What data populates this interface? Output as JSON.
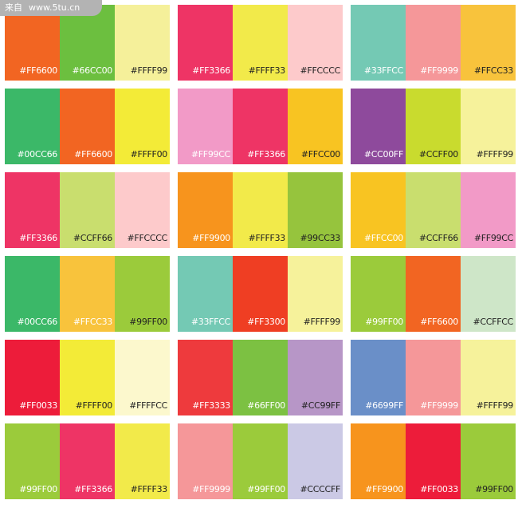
{
  "watermark": {
    "prefix": "来自",
    "site": "www.5tu.cn"
  },
  "palettes": [
    {
      "swatches": [
        {
          "label": "#FF6600",
          "color": "#F26522",
          "text": "light"
        },
        {
          "label": "#66CC00",
          "color": "#6CBF3F",
          "text": "light"
        },
        {
          "label": "#FFFF99",
          "color": "#F5F09A",
          "text": "dark"
        }
      ]
    },
    {
      "swatches": [
        {
          "label": "#FF3366",
          "color": "#EE3465",
          "text": "light"
        },
        {
          "label": "#FFFF33",
          "color": "#F2EA4A",
          "text": "dark"
        },
        {
          "label": "#FFCCCC",
          "color": "#FDCACB",
          "text": "dark"
        }
      ]
    },
    {
      "swatches": [
        {
          "label": "#33FFCC",
          "color": "#74C9B4",
          "text": "light"
        },
        {
          "label": "#FF9999",
          "color": "#F59799",
          "text": "light"
        },
        {
          "label": "#FFCC33",
          "color": "#F8C33C",
          "text": "dark"
        }
      ]
    },
    {
      "swatches": [
        {
          "label": "#00CC66",
          "color": "#3BB868",
          "text": "light"
        },
        {
          "label": "#FF6600",
          "color": "#F26522",
          "text": "light"
        },
        {
          "label": "#FFFF00",
          "color": "#F3EB37",
          "text": "dark"
        }
      ]
    },
    {
      "swatches": [
        {
          "label": "#FF99CC",
          "color": "#F29AC7",
          "text": "light"
        },
        {
          "label": "#FF3366",
          "color": "#EE3465",
          "text": "light"
        },
        {
          "label": "#FFCC00",
          "color": "#F8C422",
          "text": "dark"
        }
      ]
    },
    {
      "swatches": [
        {
          "label": "#CC00FF",
          "color": "#8E4A9C",
          "text": "light"
        },
        {
          "label": "#CCFF00",
          "color": "#C9DB2E",
          "text": "dark"
        },
        {
          "label": "#FFFF99",
          "color": "#F6F29B",
          "text": "dark"
        }
      ]
    },
    {
      "swatches": [
        {
          "label": "#FF3366",
          "color": "#EE3465",
          "text": "light"
        },
        {
          "label": "#CCFF66",
          "color": "#C9DE6E",
          "text": "dark"
        },
        {
          "label": "#FFCCCC",
          "color": "#FDCACB",
          "text": "dark"
        }
      ]
    },
    {
      "swatches": [
        {
          "label": "#FF9900",
          "color": "#F7941D",
          "text": "light"
        },
        {
          "label": "#FFFF33",
          "color": "#F2EA4A",
          "text": "dark"
        },
        {
          "label": "#99CC33",
          "color": "#96C43D",
          "text": "dark"
        }
      ]
    },
    {
      "swatches": [
        {
          "label": "#FFCC00",
          "color": "#F8C422",
          "text": "light"
        },
        {
          "label": "#CCFF66",
          "color": "#C9DE6E",
          "text": "dark"
        },
        {
          "label": "#FF99CC",
          "color": "#F29AC7",
          "text": "dark"
        }
      ]
    },
    {
      "swatches": [
        {
          "label": "#00CC66",
          "color": "#3BB868",
          "text": "light"
        },
        {
          "label": "#FFCC33",
          "color": "#F8C33C",
          "text": "light"
        },
        {
          "label": "#99FF00",
          "color": "#9BCB3B",
          "text": "dark"
        }
      ]
    },
    {
      "swatches": [
        {
          "label": "#33FFCC",
          "color": "#74C9B4",
          "text": "light"
        },
        {
          "label": "#FF3300",
          "color": "#EF3E23",
          "text": "light"
        },
        {
          "label": "#FFFF99",
          "color": "#F6F29B",
          "text": "dark"
        }
      ]
    },
    {
      "swatches": [
        {
          "label": "#99FF00",
          "color": "#9BCB3B",
          "text": "light"
        },
        {
          "label": "#FF6600",
          "color": "#F26522",
          "text": "light"
        },
        {
          "label": "#CCFFCC",
          "color": "#CEE6C8",
          "text": "dark"
        }
      ]
    },
    {
      "swatches": [
        {
          "label": "#FF0033",
          "color": "#ED1C3A",
          "text": "light"
        },
        {
          "label": "#FFFF00",
          "color": "#F3EB37",
          "text": "dark"
        },
        {
          "label": "#FFFFCC",
          "color": "#FCF8CD",
          "text": "dark"
        }
      ]
    },
    {
      "swatches": [
        {
          "label": "#FF3333",
          "color": "#EE3A3D",
          "text": "light"
        },
        {
          "label": "#66FF00",
          "color": "#7CC142",
          "text": "light"
        },
        {
          "label": "#CC99FF",
          "color": "#B796C7",
          "text": "dark"
        }
      ]
    },
    {
      "swatches": [
        {
          "label": "#6699FF",
          "color": "#6A8FC8",
          "text": "light"
        },
        {
          "label": "#FF9999",
          "color": "#F59799",
          "text": "light"
        },
        {
          "label": "#FFFF99",
          "color": "#F6F29B",
          "text": "dark"
        }
      ]
    },
    {
      "swatches": [
        {
          "label": "#99FF00",
          "color": "#9BCB3B",
          "text": "light"
        },
        {
          "label": "#FF3366",
          "color": "#EE3465",
          "text": "light"
        },
        {
          "label": "#FFFF33",
          "color": "#F2EA4A",
          "text": "dark"
        }
      ]
    },
    {
      "swatches": [
        {
          "label": "#FF9999",
          "color": "#F59799",
          "text": "light"
        },
        {
          "label": "#99FF00",
          "color": "#9BCB3B",
          "text": "light"
        },
        {
          "label": "#CCCCFF",
          "color": "#CBC9E5",
          "text": "dark"
        }
      ]
    },
    {
      "swatches": [
        {
          "label": "#FF9900",
          "color": "#F7941D",
          "text": "light"
        },
        {
          "label": "#FF0033",
          "color": "#ED1C3A",
          "text": "light"
        },
        {
          "label": "#99FF00",
          "color": "#9BCB3B",
          "text": "dark"
        }
      ]
    }
  ]
}
